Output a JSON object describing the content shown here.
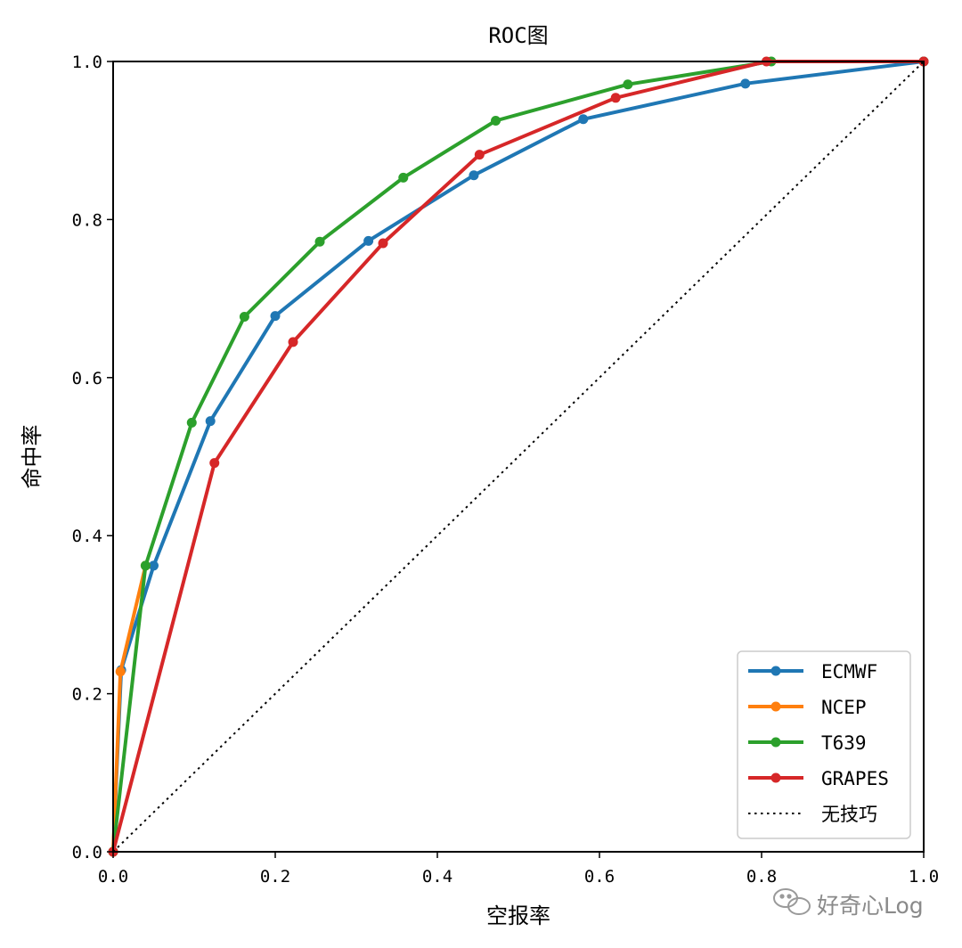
{
  "chart_data": {
    "type": "line",
    "title": "ROC图",
    "xlabel": "空报率",
    "ylabel": "命中率",
    "xlim": [
      0,
      1
    ],
    "ylim": [
      0,
      1
    ],
    "xticks": [
      0.0,
      0.2,
      0.4,
      0.6,
      0.8,
      1.0
    ],
    "yticks": [
      0.0,
      0.2,
      0.4,
      0.6,
      0.8,
      1.0
    ],
    "xtick_labels": [
      "0.0",
      "0.2",
      "0.4",
      "0.6",
      "0.8",
      "1.0"
    ],
    "ytick_labels": [
      "0.0",
      "0.2",
      "0.4",
      "0.6",
      "0.8",
      "1.0"
    ],
    "grid": false,
    "legend_position": "bottom-right",
    "series": [
      {
        "name": "ECMWF",
        "color": "#1f77b4",
        "marker": true,
        "x": [
          0.0,
          0.01,
          0.05,
          0.12,
          0.2,
          0.315,
          0.445,
          0.58,
          0.78,
          1.0
        ],
        "y": [
          0.0,
          0.23,
          0.362,
          0.545,
          0.678,
          0.773,
          0.856,
          0.927,
          0.972,
          1.0
        ]
      },
      {
        "name": "NCEP",
        "color": "#ff7f0e",
        "marker": true,
        "x": [
          0.0,
          0.009,
          0.04
        ],
        "y": [
          0.0,
          0.228,
          0.362
        ]
      },
      {
        "name": "T639",
        "color": "#2ca02c",
        "marker": true,
        "x": [
          0.0,
          0.04,
          0.097,
          0.162,
          0.255,
          0.358,
          0.472,
          0.635,
          0.812,
          1.0
        ],
        "y": [
          0.0,
          0.362,
          0.543,
          0.677,
          0.772,
          0.853,
          0.925,
          0.971,
          1.0,
          1.0
        ]
      },
      {
        "name": "GRAPES",
        "color": "#d62728",
        "marker": true,
        "x": [
          0.0,
          0.125,
          0.222,
          0.333,
          0.452,
          0.62,
          0.806,
          1.0
        ],
        "y": [
          0.0,
          0.492,
          0.645,
          0.77,
          0.882,
          0.954,
          1.0,
          1.0
        ]
      },
      {
        "name": "无技巧",
        "color": "#000000",
        "marker": false,
        "dashed": true,
        "x": [
          0.0,
          1.0
        ],
        "y": [
          0.0,
          1.0
        ]
      }
    ]
  },
  "watermark": {
    "text": "好奇心Log",
    "icon": "wechat-icon"
  }
}
